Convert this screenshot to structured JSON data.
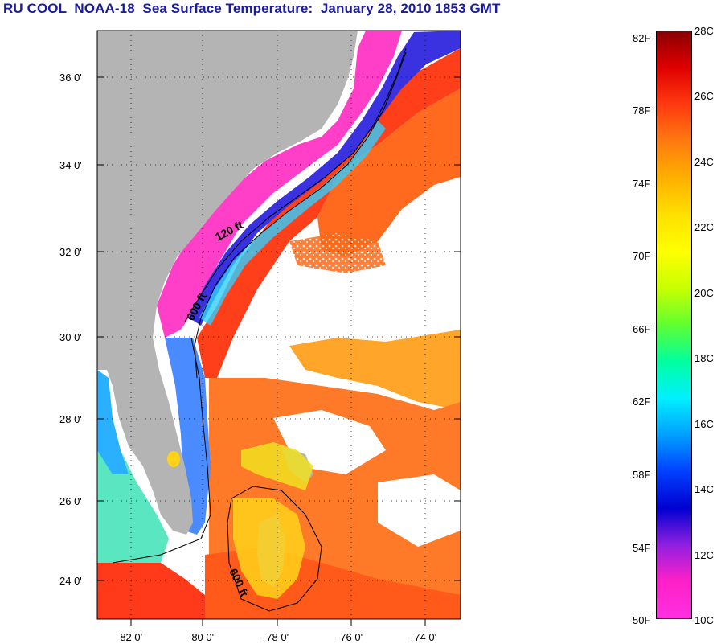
{
  "title": "RU COOL  NOAA-18  Sea Surface Temperature:  January 28, 2010 1853 GMT",
  "map": {
    "lat_ticks": [
      "36 0'",
      "34 0'",
      "32 0'",
      "30 0'",
      "28 0'",
      "26 0'",
      "24 0'"
    ],
    "lon_ticks": [
      "-82 0'",
      "-80 0'",
      "-78 0'",
      "-76 0'",
      "-74 0'"
    ],
    "depth_labels": [
      "120 ft",
      "600 ft",
      "600 ft"
    ],
    "colors": {
      "land": "#b4b4b4",
      "cloud": "#ffffff",
      "cold": "#ff3fc8",
      "warm": "#ff3a1a",
      "gulf_stream": "#ff5a10",
      "offshore": "#ffa020"
    }
  },
  "colorbar": {
    "fahrenheit": [
      "82F",
      "78F",
      "74F",
      "70F",
      "66F",
      "62F",
      "58F",
      "54F",
      "50F"
    ],
    "celsius": [
      "28C",
      "26C",
      "24C",
      "22C",
      "20C",
      "18C",
      "16C",
      "14C",
      "12C",
      "10C"
    ],
    "gradient_top_to_bottom": [
      "#8b0000",
      "#e00000",
      "#ff3a10",
      "#ff7a10",
      "#ffb000",
      "#ffe000",
      "#ffff00",
      "#c8ff00",
      "#60ff30",
      "#00ffa0",
      "#00f0ff",
      "#00a0ff",
      "#0040ff",
      "#0000d0",
      "#9020e0",
      "#ff20c8",
      "#ff30e0"
    ]
  }
}
